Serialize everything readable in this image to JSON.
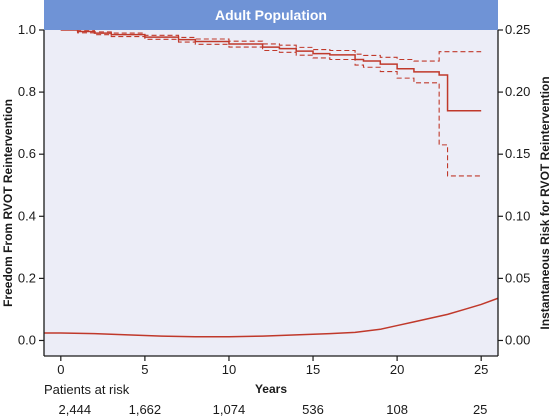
{
  "chart_data": {
    "type": "line",
    "title": "Adult Population",
    "xlabel": "Years",
    "ylabel": "Freedom From RVOT Reintervention",
    "y2label": "Instantaneous Risk for RVOT Reintervention",
    "xlim": [
      -1,
      26
    ],
    "ylim": [
      -0.05,
      1.0
    ],
    "y2lim": [
      -0.0125,
      0.25
    ],
    "xticks": [
      0,
      5,
      10,
      15,
      20,
      25
    ],
    "yticks": [
      0.0,
      0.2,
      0.4,
      0.6,
      0.8,
      1.0
    ],
    "ytick_labels": [
      "0.0",
      "0.2",
      "0.4",
      "0.6",
      "0.8",
      "1.0"
    ],
    "y2ticks": [
      0.0,
      0.05,
      0.1,
      0.15,
      0.2,
      0.25
    ],
    "y2tick_labels": [
      "0.00",
      "0.05",
      "0.10",
      "0.15",
      "0.20",
      "0.25"
    ],
    "grid": false,
    "plot_background": "#ecedf7",
    "series": [
      {
        "style": "step",
        "color": "#c0392b",
        "dash": false,
        "axis": "left",
        "x": [
          0,
          1,
          2,
          3,
          5,
          7,
          8,
          10,
          12,
          13,
          14,
          15,
          16,
          17.5,
          18,
          19,
          20,
          21,
          22.5,
          23,
          24,
          25
        ],
        "y": [
          1.0,
          0.995,
          0.99,
          0.985,
          0.977,
          0.969,
          0.963,
          0.955,
          0.945,
          0.94,
          0.932,
          0.924,
          0.92,
          0.905,
          0.9,
          0.89,
          0.875,
          0.865,
          0.855,
          0.74,
          0.74,
          0.74
        ]
      },
      {
        "style": "step",
        "color": "#c0392b",
        "dash": true,
        "axis": "left",
        "x": [
          0,
          1,
          2,
          3,
          5,
          7,
          8,
          10,
          12,
          13,
          14,
          15,
          16,
          17.5,
          18,
          19,
          20,
          21,
          22.5,
          23,
          24,
          25
        ],
        "y": [
          1.0,
          0.998,
          0.994,
          0.99,
          0.983,
          0.976,
          0.971,
          0.964,
          0.955,
          0.951,
          0.944,
          0.937,
          0.934,
          0.922,
          0.918,
          0.912,
          0.905,
          0.9,
          0.93,
          0.93,
          0.93,
          0.93
        ]
      },
      {
        "style": "step",
        "color": "#c0392b",
        "dash": true,
        "axis": "left",
        "x": [
          0,
          1,
          2,
          3,
          5,
          7,
          8,
          10,
          12,
          13,
          14,
          15,
          16,
          17.5,
          18,
          19,
          20,
          21,
          22.5,
          23,
          24,
          25
        ],
        "y": [
          1.0,
          0.991,
          0.985,
          0.979,
          0.97,
          0.961,
          0.954,
          0.945,
          0.934,
          0.928,
          0.919,
          0.91,
          0.905,
          0.887,
          0.88,
          0.866,
          0.845,
          0.83,
          0.63,
          0.53,
          0.53,
          0.53
        ]
      },
      {
        "style": "smooth",
        "color": "#c0392b",
        "dash": false,
        "axis": "right",
        "x": [
          -1,
          0,
          2,
          4,
          6,
          8,
          10,
          12,
          14,
          16,
          17.5,
          19,
          20,
          21,
          22,
          23,
          24,
          25,
          26
        ],
        "y": [
          0.006,
          0.006,
          0.0055,
          0.0045,
          0.0035,
          0.003,
          0.003,
          0.0035,
          0.0045,
          0.0055,
          0.0065,
          0.009,
          0.012,
          0.015,
          0.018,
          0.021,
          0.025,
          0.029,
          0.034
        ]
      }
    ]
  },
  "risk_table": {
    "title": "Patients at risk",
    "values": [
      "2,444",
      "1,662",
      "1,074",
      "536",
      "108",
      "25"
    ]
  }
}
